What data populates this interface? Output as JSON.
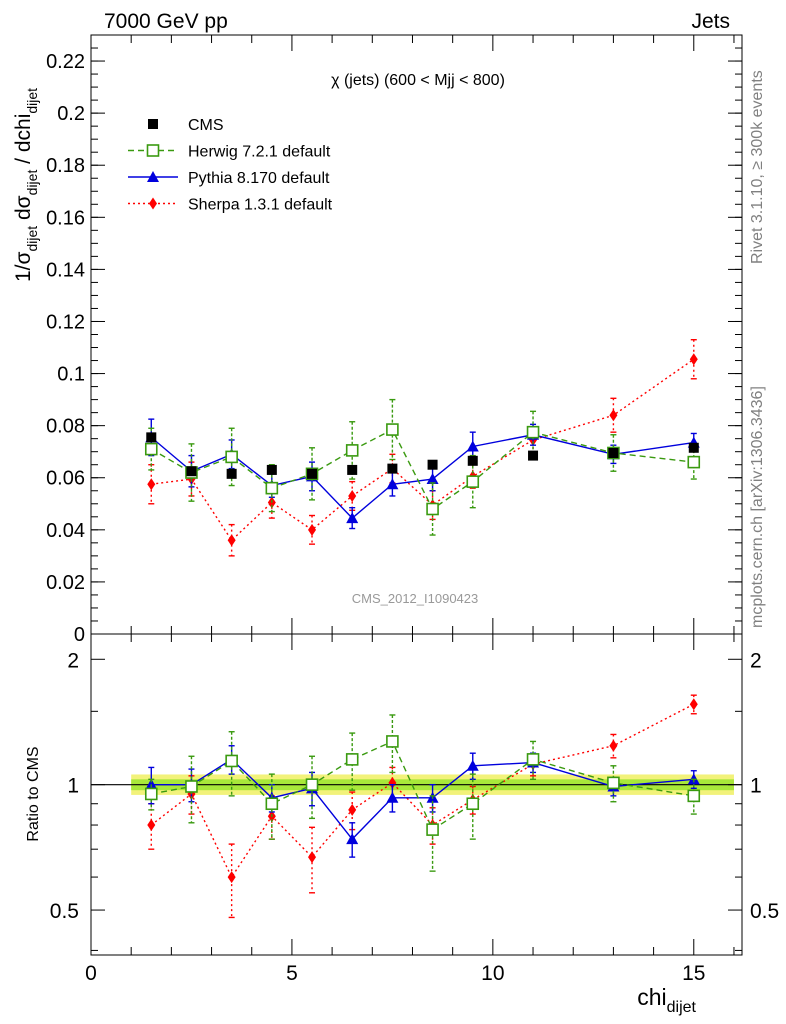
{
  "header": {
    "left": "7000 GeV pp",
    "right": "Jets"
  },
  "side_labels": {
    "rivet": "Rivet 3.1.10, ≥ 300k events",
    "mcplots": "mcplots.cern.ch [arXiv:1306.3436]"
  },
  "watermark": "CMS_2012_I1090423",
  "chart_data": [
    {
      "type": "scatter",
      "panel": "main",
      "title": "χ (jets) (600 < Mjj <  800)",
      "ylabel": "1/σ_dijet dσ_dijet / dchi_dijet",
      "xlim": [
        0,
        16.2
      ],
      "ylim": [
        0,
        0.23
      ],
      "yticks": [
        0,
        0.02,
        0.04,
        0.06,
        0.08,
        0.1,
        0.12,
        0.14,
        0.16,
        0.18,
        0.2,
        0.22
      ],
      "ytick_labels": [
        "0",
        "0.02",
        "0.04",
        "0.06",
        "0.08",
        "0.1",
        "0.12",
        "0.14",
        "0.16",
        "0.18",
        "0.2",
        "0.22"
      ],
      "legend_position": "top-left",
      "x": [
        1.5,
        2.5,
        3.5,
        4.5,
        5.5,
        6.5,
        7.5,
        8.5,
        9.5,
        11,
        13,
        15
      ],
      "series": [
        {
          "name": "CMS",
          "color": "#000000",
          "marker": "filled-square",
          "line": "none",
          "values": [
            0.0755,
            0.0625,
            0.0615,
            0.063,
            0.0615,
            0.063,
            0.0635,
            0.065,
            0.0665,
            0.0685,
            0.0695,
            0.0715
          ],
          "errors": [
            0.0015,
            0.0015,
            0.0015,
            0.0015,
            0.0015,
            0.0015,
            0.0015,
            0.0015,
            0.0015,
            0.0015,
            0.0015,
            0.0015
          ]
        },
        {
          "name": "Herwig 7.2.1 default",
          "color": "#3a9a10",
          "marker": "open-square",
          "line": "dashed",
          "values": [
            0.071,
            0.062,
            0.068,
            0.056,
            0.0615,
            0.0705,
            0.0785,
            0.048,
            0.0585,
            0.0775,
            0.0695,
            0.066
          ],
          "errors": [
            0.008,
            0.011,
            0.011,
            0.009,
            0.01,
            0.011,
            0.0115,
            0.01,
            0.01,
            0.008,
            0.007,
            0.0065
          ]
        },
        {
          "name": "Pythia 8.170 default",
          "color": "#0000dd",
          "marker": "filled-triangle",
          "line": "solid",
          "values": [
            0.0755,
            0.0625,
            0.069,
            0.057,
            0.0605,
            0.0445,
            0.0575,
            0.0595,
            0.072,
            0.0765,
            0.069,
            0.0735
          ],
          "errors": [
            0.007,
            0.006,
            0.0055,
            0.0045,
            0.0055,
            0.004,
            0.0045,
            0.0045,
            0.0055,
            0.004,
            0.0035,
            0.0035
          ]
        },
        {
          "name": "Sherpa 1.3.1 default",
          "color": "#ff0000",
          "marker": "filled-diamond",
          "line": "dotted",
          "values": [
            0.0575,
            0.0595,
            0.036,
            0.0505,
            0.04,
            0.053,
            0.0635,
            0.0495,
            0.0605,
            0.0745,
            0.084,
            0.1055
          ],
          "errors": [
            0.0075,
            0.0065,
            0.006,
            0.006,
            0.0055,
            0.0055,
            0.0055,
            0.0055,
            0.0045,
            0.005,
            0.0065,
            0.0075
          ]
        }
      ]
    },
    {
      "type": "scatter",
      "panel": "ratio",
      "xlabel": "chi_dijet",
      "ylabel": "Ratio to CMS",
      "xlim": [
        0,
        16.2
      ],
      "ylim": [
        0.39,
        2.3
      ],
      "yscale": "log",
      "xticks": [
        0,
        5,
        10,
        15
      ],
      "xtick_labels": [
        "0",
        "5",
        "10",
        "15"
      ],
      "yticks": [
        0.5,
        1,
        2
      ],
      "ytick_labels": [
        "0.5",
        "1",
        "2"
      ],
      "reference_line": 1,
      "bands": [
        {
          "color": "#f2f27a",
          "lo": 0.945,
          "hi": 1.058
        },
        {
          "color": "#a8e83a",
          "lo": 0.97,
          "hi": 1.03
        }
      ],
      "x": [
        1.5,
        2.5,
        3.5,
        4.5,
        5.5,
        6.5,
        7.5,
        8.5,
        9.5,
        11,
        13,
        15
      ],
      "series": [
        {
          "name": "Herwig 7.2.1 default",
          "color": "#3a9a10",
          "marker": "open-square",
          "line": "dashed",
          "values": [
            0.95,
            0.99,
            1.14,
            0.9,
            1.0,
            1.15,
            1.27,
            0.78,
            0.9,
            1.15,
            1.01,
            0.94
          ],
          "errors": [
            0.08,
            0.18,
            0.2,
            0.16,
            0.17,
            0.18,
            0.2,
            0.16,
            0.16,
            0.12,
            0.1,
            0.09
          ]
        },
        {
          "name": "Pythia 8.170 default",
          "color": "#0000dd",
          "marker": "filled-triangle",
          "line": "solid",
          "values": [
            1.0,
            1.0,
            1.15,
            0.93,
            0.98,
            0.74,
            0.93,
            0.93,
            1.11,
            1.13,
            0.99,
            1.03
          ],
          "errors": [
            0.1,
            0.09,
            0.09,
            0.07,
            0.09,
            0.07,
            0.07,
            0.07,
            0.08,
            0.06,
            0.05,
            0.05
          ]
        },
        {
          "name": "Sherpa 1.3.1 default",
          "color": "#ff0000",
          "marker": "filled-diamond",
          "line": "dotted",
          "values": [
            0.8,
            0.95,
            0.6,
            0.84,
            0.67,
            0.87,
            1.01,
            0.8,
            0.92,
            1.12,
            1.24,
            1.56
          ],
          "errors": [
            0.1,
            0.1,
            0.12,
            0.1,
            0.12,
            0.09,
            0.09,
            0.08,
            0.07,
            0.07,
            0.08,
            0.08
          ]
        }
      ]
    }
  ]
}
